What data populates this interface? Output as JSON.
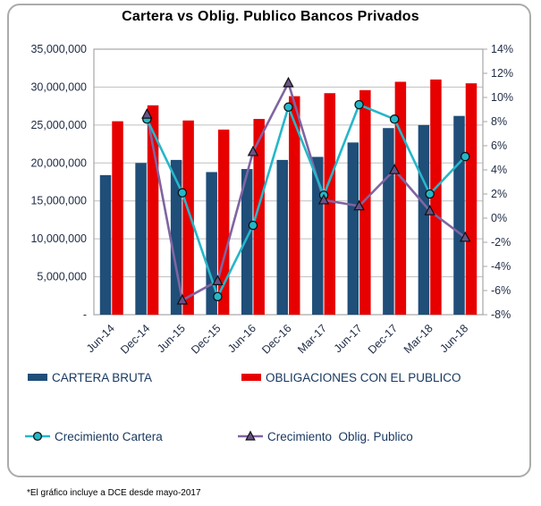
{
  "title": "Cartera vs Oblig. Publico Bancos Privados",
  "footnote": "*El gráfico incluye a DCE desde  mayo-2017",
  "colors": {
    "cartera_bar": "#1f4e79",
    "obligaciones_bar": "#e60000",
    "crecimiento_cartera_line": "#25b7c9",
    "crecimiento_oblig_line": "#8064a2",
    "triangle_fill": "#6a5386",
    "grid": "#bfbfbf",
    "plot_border": "#a6a6a6",
    "axis_text": "#1e2a44",
    "legend_text": "#17375e"
  },
  "legend": {
    "bars": [
      {
        "label": "CARTERA BRUTA"
      },
      {
        "label": "OBLIGACIONES CON EL PUBLICO"
      }
    ],
    "lines": [
      {
        "label": "Crecimiento Cartera"
      },
      {
        "label": "Crecimiento  Oblig. Publico"
      }
    ]
  },
  "chart_data": {
    "type": "bar",
    "subtype": "combo-bar-line-dual-axis",
    "title": "Cartera vs Oblig. Publico Bancos Privados",
    "categories": [
      "Jun-14",
      "Dec-14",
      "Jun-15",
      "Dec-15",
      "Jun-16",
      "Dec-16",
      "Mar-17",
      "Jun-17",
      "Dec-17",
      "Mar-18",
      "Jun-18"
    ],
    "bar_series": [
      {
        "name": "CARTERA BRUTA",
        "axis": "left",
        "color": "#1f4e79",
        "values": [
          18400000,
          20000000,
          20400000,
          18800000,
          19200000,
          20400000,
          20800000,
          22700000,
          24600000,
          25000000,
          26200000
        ]
      },
      {
        "name": "OBLIGACIONES CON EL PUBLICO",
        "axis": "left",
        "color": "#e60000",
        "values": [
          25500000,
          27600000,
          25600000,
          24400000,
          25800000,
          28800000,
          29200000,
          29600000,
          30700000,
          31000000,
          30500000
        ]
      }
    ],
    "line_series": [
      {
        "name": "Crecimiento Cartera",
        "axis": "right",
        "color": "#25b7c9",
        "marker": "circle",
        "values_pct": [
          null,
          8.2,
          2.1,
          -6.5,
          -0.6,
          9.2,
          1.9,
          9.4,
          8.2,
          2.0,
          5.1
        ]
      },
      {
        "name": "Crecimiento  Oblig. Publico",
        "axis": "right",
        "color": "#8064a2",
        "marker": "triangle",
        "values_pct": [
          null,
          8.6,
          -6.8,
          -5.2,
          5.5,
          11.2,
          1.5,
          1.0,
          4.0,
          0.6,
          -1.6
        ]
      }
    ],
    "left_axis": {
      "min": 0,
      "max": 35000000,
      "step": 5000000,
      "tick_labels": [
        "35,000,000",
        "30,000,000",
        "25,000,000",
        "20,000,000",
        "15,000,000",
        "10,000,000",
        "5,000,000",
        "-"
      ]
    },
    "right_axis": {
      "min": -8,
      "max": 14,
      "step": 2,
      "tick_labels": [
        "14%",
        "12%",
        "10%",
        "8%",
        "6%",
        "4%",
        "2%",
        "0%",
        "-2%",
        "-4%",
        "-6%",
        "-8%"
      ]
    },
    "grid": "horizontal gridlines every 5,000,000",
    "legend_position": "below"
  }
}
